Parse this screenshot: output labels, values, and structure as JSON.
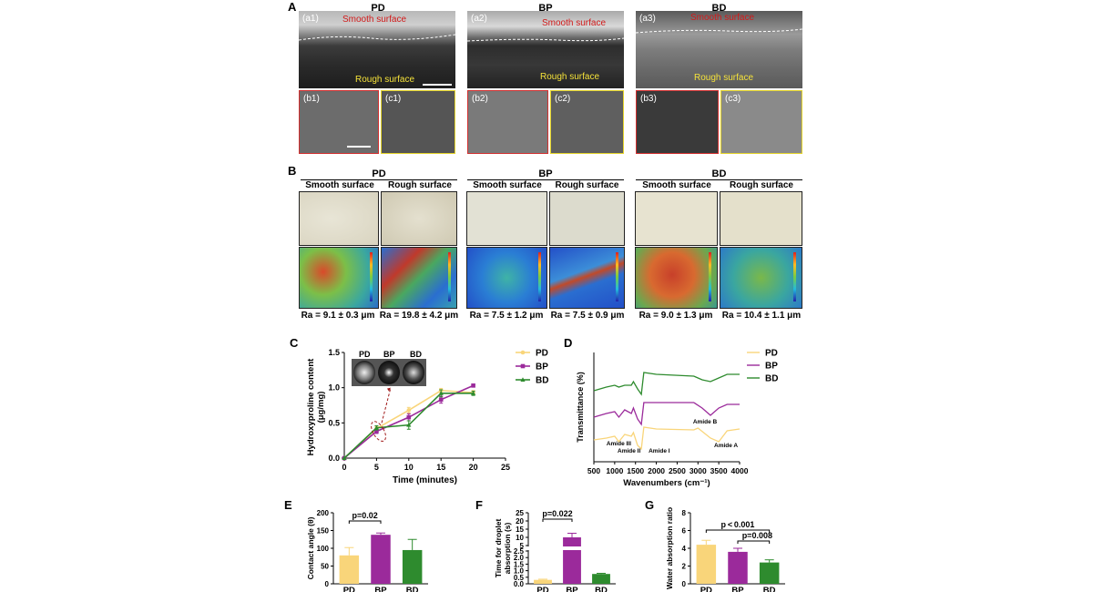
{
  "panels": {
    "A": {
      "letter": "A",
      "groups": [
        "PD",
        "BP",
        "BD"
      ],
      "top_labels": [
        "(a1)",
        "(a2)",
        "(a3)"
      ],
      "bottom_labels": [
        "(b1)",
        "(c1)",
        "(b2)",
        "(c2)",
        "(b3)",
        "(c3)"
      ],
      "smooth_label": "Smooth surface",
      "rough_label": "Rough surface"
    },
    "B": {
      "letter": "B",
      "groups": [
        "PD",
        "BP",
        "BD"
      ],
      "surfaces": [
        "Smooth surface",
        "Rough surface"
      ],
      "ra_values": [
        "Ra = 9.1 ± 0.3 μm",
        "Ra = 19.8 ± 4.2 μm",
        "Ra = 7.5 ± 1.2 μm",
        "Ra = 7.5 ± 0.9 μm",
        "Ra = 9.0 ± 1.3 μm",
        "Ra = 10.4 ± 1.1 μm"
      ]
    },
    "C": {
      "letter": "C",
      "inset_labels": [
        "PD",
        "BP",
        "BD"
      ]
    },
    "D": {
      "letter": "D",
      "annotations": [
        "Amide III",
        "Amide II",
        "Amide I",
        "Amide B",
        "Amide A"
      ]
    },
    "E": {
      "letter": "E",
      "pvalue": "p=0.02"
    },
    "F": {
      "letter": "F",
      "pvalue": "p=0.022"
    },
    "G": {
      "letter": "G",
      "pvalues": [
        "p < 0.001",
        "p=0.008"
      ]
    }
  },
  "colors": {
    "PD": "#f9d57a",
    "BP": "#9b2a9b",
    "BD": "#2e8b2e",
    "dashed_red": "#a01818"
  },
  "chart_data": [
    {
      "id": "C",
      "type": "line",
      "xlabel": "Time (minutes)",
      "ylabel": "Hydroxyproline content (μg/mg)",
      "xlim": [
        0,
        25
      ],
      "ylim": [
        0,
        1.5
      ],
      "xticks": [
        0,
        5,
        10,
        15,
        20,
        25
      ],
      "yticks": [
        0.0,
        0.5,
        1.0,
        1.5
      ],
      "ytick_labels": [
        "0.0",
        "0.5",
        "1.0",
        "1.5"
      ],
      "x": [
        0,
        5,
        10,
        15,
        20
      ],
      "series": [
        {
          "name": "PD",
          "values": [
            0,
            0.42,
            0.68,
            0.96,
            0.93
          ],
          "err": [
            0,
            0.03,
            0.04,
            0.03,
            0.03
          ]
        },
        {
          "name": "BP",
          "values": [
            0,
            0.38,
            0.58,
            0.83,
            1.03
          ],
          "err": [
            0,
            0.03,
            0.05,
            0.05,
            0.02
          ]
        },
        {
          "name": "BD",
          "values": [
            0,
            0.43,
            0.47,
            0.92,
            0.92
          ],
          "err": [
            0,
            0.03,
            0.06,
            0.05,
            0.03
          ]
        }
      ],
      "legend": "right"
    },
    {
      "id": "D",
      "type": "line",
      "xlabel": "Wavenumbers (cm⁻¹)",
      "ylabel": "Transmittance (%)",
      "xlim": [
        500,
        4000
      ],
      "xticks": [
        500,
        1000,
        1500,
        2000,
        2500,
        3000,
        3500,
        4000
      ],
      "series": [
        {
          "name": "PD"
        },
        {
          "name": "BP"
        },
        {
          "name": "BD"
        }
      ],
      "legend": "right"
    },
    {
      "id": "E",
      "type": "bar",
      "categories": [
        "PD",
        "BP",
        "BD"
      ],
      "values": [
        80,
        138,
        95
      ],
      "err": [
        22,
        5,
        30
      ],
      "ylabel": "Contact angle (θ)",
      "ylim": [
        0,
        200
      ],
      "yticks": [
        0,
        50,
        100,
        150,
        200
      ]
    },
    {
      "id": "F",
      "type": "bar",
      "categories": [
        "PD",
        "BP",
        "BD"
      ],
      "values": [
        0.3,
        10,
        0.75
      ],
      "err": [
        0.05,
        2.5,
        0.05
      ],
      "ylabel": "Time for droplet absorption (s)",
      "ytick_labels": [
        "0.0",
        "0.5",
        "1.0",
        "1.5",
        "2.0",
        "2.5",
        "5",
        "10",
        "15",
        "20",
        "25"
      ],
      "axis_break": true
    },
    {
      "id": "G",
      "type": "bar",
      "categories": [
        "PD",
        "BP",
        "BD"
      ],
      "values": [
        4.4,
        3.6,
        2.4
      ],
      "err": [
        0.5,
        0.4,
        0.3
      ],
      "ylabel": "Water absorption ratio",
      "ylim": [
        0,
        8
      ],
      "yticks": [
        0,
        2,
        4,
        6,
        8
      ]
    }
  ]
}
